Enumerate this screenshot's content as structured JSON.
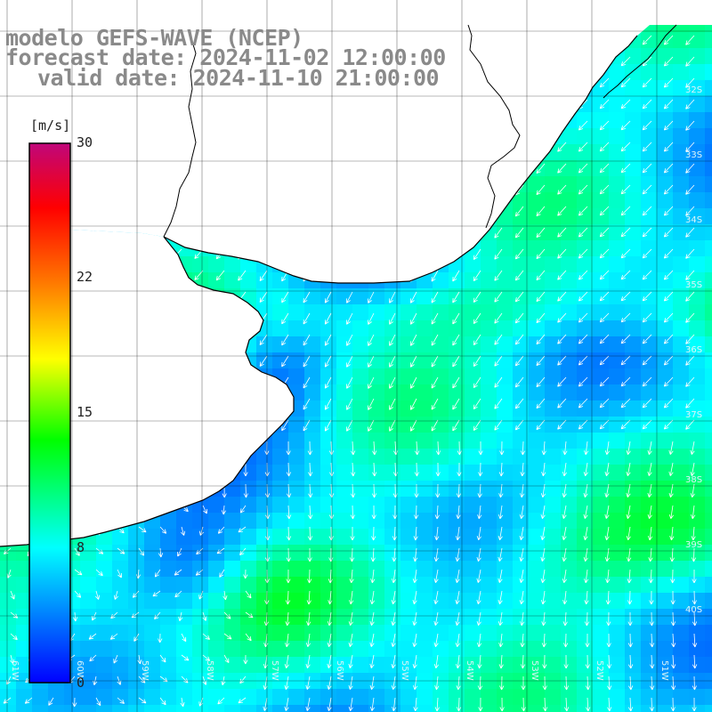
{
  "title": {
    "line1": "modelo GEFS-WAVE (NCEP)",
    "line2": "forecast date: 2024-11-02 12:00:00",
    "line3": "valid date: 2024-11-10 21:00:00"
  },
  "colorbar": {
    "units": "[m/s]",
    "ticks": [
      "30",
      "22",
      "15",
      "8",
      "0"
    ],
    "colors": [
      "#c0067a",
      "#ff0000",
      "#ff7a00",
      "#ffff00",
      "#00ff00",
      "#00ffff",
      "#0000ff"
    ]
  },
  "colors": {
    "land": "#ffffff",
    "coast": "#000000",
    "grid": "#000000",
    "arrows": "#ffffff"
  },
  "grid_labels": {
    "lat": [
      "32S",
      "33S",
      "34S",
      "35S",
      "36S",
      "37S",
      "38S",
      "39S",
      "40S"
    ],
    "lon": [
      "61W",
      "60W",
      "59W",
      "58W",
      "57W",
      "56W",
      "55W",
      "54W",
      "53W",
      "52W",
      "51W"
    ]
  }
}
